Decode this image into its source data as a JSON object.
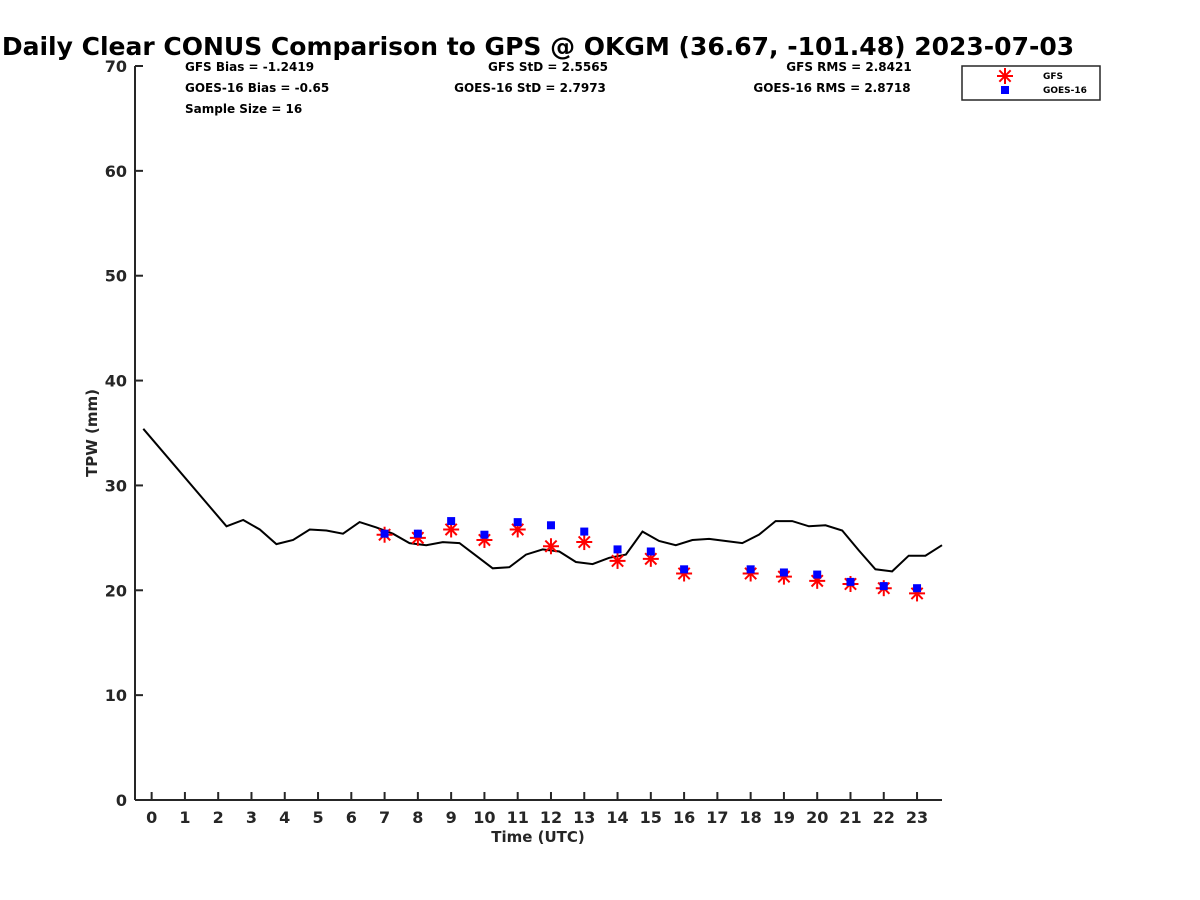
{
  "chart_data": {
    "type": "line",
    "title": "Daily Clear CONUS Comparison to GPS @ OKGM (36.67, -101.48) 2023-07-03",
    "xlabel": "Time (UTC)",
    "ylabel": "TPW (mm)",
    "xlim": [
      -0.5,
      23.75
    ],
    "ylim": [
      0,
      70
    ],
    "x_ticks": [
      "0",
      "1",
      "2",
      "3",
      "4",
      "5",
      "6",
      "7",
      "8",
      "9",
      "10",
      "11",
      "12",
      "13",
      "14",
      "15",
      "16",
      "17",
      "18",
      "19",
      "20",
      "21",
      "22",
      "23"
    ],
    "y_ticks": [
      "0",
      "10",
      "20",
      "30",
      "40",
      "50",
      "60",
      "70"
    ],
    "grid": false,
    "legend_position": "top-right",
    "stats": {
      "gfs_bias": "GFS Bias = -1.2419",
      "goes_bias": "GOES-16 Bias = -0.65",
      "sample_size": "Sample Size = 16",
      "gfs_std": "GFS StD = 2.5565",
      "goes_std": "GOES-16 StD = 2.7973",
      "gfs_rms": "GFS RMS = 2.8421",
      "goes_rms": "GOES-16 RMS = 2.8718"
    },
    "series": [
      {
        "type": "line",
        "color": "#000000",
        "x": [
          -0.25,
          2.25,
          2.75,
          3.25,
          3.75,
          4.25,
          4.75,
          5.25,
          5.75,
          6.25,
          6.75,
          7.25,
          7.75,
          8.25,
          8.75,
          9.25,
          9.75,
          10.25,
          10.75,
          11.25,
          11.75,
          12.25,
          12.75,
          13.25,
          13.75,
          14.25,
          14.75,
          15.25,
          15.75,
          16.25,
          16.75,
          17.25,
          17.75,
          18.25,
          18.75,
          19.25,
          19.75,
          20.25,
          20.75,
          21.25,
          21.75,
          22.25,
          22.75,
          23.25,
          23.75
        ],
        "y": [
          35.4,
          26.1,
          26.7,
          25.8,
          24.4,
          24.8,
          25.8,
          25.7,
          25.4,
          26.5,
          26.0,
          25.4,
          24.5,
          24.3,
          24.6,
          24.5,
          23.3,
          22.1,
          22.2,
          23.4,
          23.9,
          23.7,
          22.7,
          22.5,
          23.1,
          23.4,
          25.6,
          24.7,
          24.3,
          24.8,
          24.9,
          24.7,
          24.5,
          25.3,
          26.6,
          26.6,
          26.1,
          26.2,
          25.7,
          23.8,
          22.0,
          21.8,
          23.3,
          23.3,
          24.3
        ]
      },
      {
        "name": "GFS",
        "type": "scatter",
        "marker": "asterisk",
        "color": "#ff0000",
        "x": [
          7,
          8,
          9,
          10,
          11,
          12,
          13,
          14,
          15,
          16,
          18,
          19,
          20,
          21,
          22,
          23
        ],
        "y": [
          25.3,
          25.0,
          25.8,
          24.8,
          25.8,
          24.2,
          24.6,
          22.8,
          23.0,
          21.6,
          21.6,
          21.3,
          20.9,
          20.6,
          20.2,
          19.7
        ]
      },
      {
        "name": "GOES-16",
        "type": "scatter",
        "marker": "square",
        "color": "#0000ff",
        "x": [
          7,
          8,
          9,
          10,
          11,
          12,
          13,
          14,
          15,
          16,
          18,
          19,
          20,
          21,
          22,
          23
        ],
        "y": [
          25.4,
          25.4,
          26.6,
          25.3,
          26.5,
          26.2,
          25.6,
          23.9,
          23.7,
          22.0,
          22.0,
          21.7,
          21.5,
          20.8,
          20.4,
          20.2
        ]
      }
    ]
  }
}
